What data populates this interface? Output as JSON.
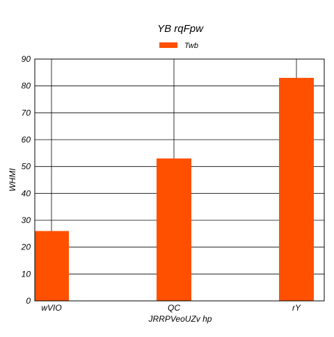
{
  "chart_data": {
    "type": "bar",
    "title": "YB rqFpw",
    "xlabel": "JRRPVeoUZv hp",
    "ylabel": "WHMI",
    "categories": [
      "wVIO",
      "QC",
      "rY"
    ],
    "series": [
      {
        "name": "Twb",
        "values": [
          26,
          53,
          83
        ],
        "color": "#ff5000"
      }
    ],
    "ylim": [
      0,
      90
    ],
    "yticks": [
      "0",
      "10",
      "20",
      "30",
      "40",
      "50",
      "60",
      "70",
      "80",
      "90"
    ],
    "grid": true,
    "legend_position": "top-center"
  }
}
